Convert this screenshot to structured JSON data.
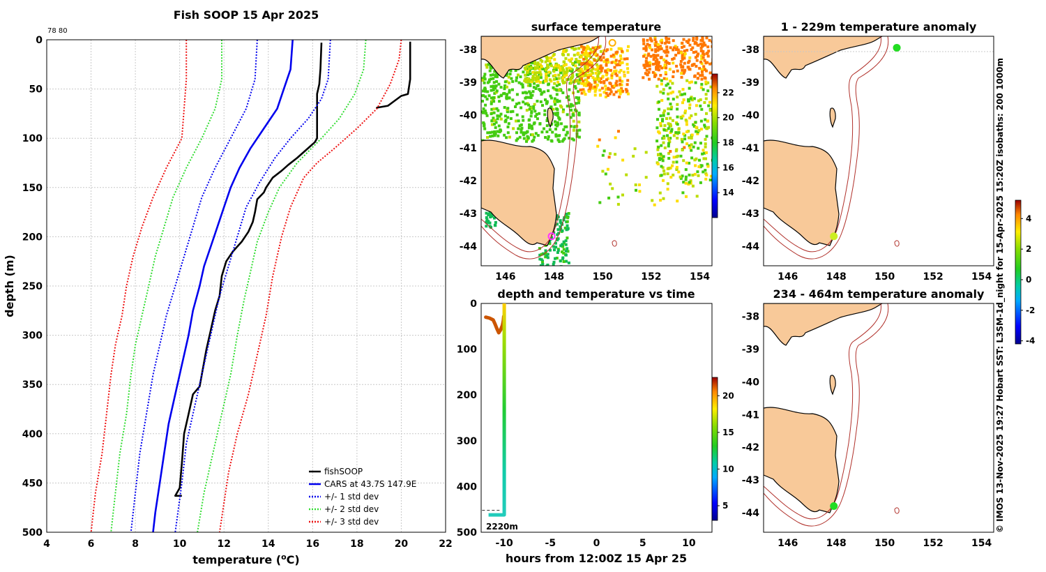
{
  "chart_data": [
    {
      "type": "line",
      "title": "Fish SOOP 15 Apr 2025",
      "corner_note": "78 80",
      "xlabel_text": "temperature (",
      "xlabel_sup": "o",
      "xlabel_unit": "C)",
      "ylabel": "depth (m)",
      "xlim": [
        4,
        22
      ],
      "ylim": [
        500,
        0
      ],
      "xticks": [
        4,
        6,
        8,
        10,
        12,
        14,
        16,
        18,
        20,
        22
      ],
      "yticks": [
        0,
        50,
        100,
        150,
        200,
        250,
        300,
        350,
        400,
        450,
        500
      ],
      "series": [
        {
          "name": "fishSOOP",
          "color": "#000000",
          "style": "solid",
          "points": [
            [
              20.4,
              2
            ],
            [
              20.4,
              20
            ],
            [
              20.4,
              40
            ],
            [
              20.3,
              55
            ],
            [
              20.0,
              57
            ],
            [
              19.7,
              62
            ],
            [
              19.4,
              67
            ],
            [
              18.9,
              69
            ],
            [
              18.9,
              70
            ],
            [
              16.4,
              3
            ],
            [
              16.35,
              30
            ],
            [
              16.3,
              45
            ],
            [
              16.2,
              55
            ],
            [
              16.2,
              80
            ],
            [
              16.2,
              100
            ],
            [
              16.1,
              104
            ],
            [
              15.7,
              112
            ],
            [
              15.3,
              120
            ],
            [
              14.9,
              127
            ],
            [
              14.6,
              133
            ],
            [
              14.2,
              140
            ],
            [
              13.9,
              150
            ],
            [
              13.8,
              155
            ],
            [
              13.5,
              162
            ],
            [
              13.4,
              175
            ],
            [
              13.3,
              185
            ],
            [
              13.1,
              195
            ],
            [
              12.8,
              205
            ],
            [
              12.4,
              215
            ],
            [
              12.1,
              225
            ],
            [
              11.9,
              240
            ],
            [
              11.8,
              260
            ],
            [
              11.6,
              275
            ],
            [
              11.4,
              295
            ],
            [
              11.2,
              315
            ],
            [
              11.0,
              340
            ],
            [
              10.9,
              352
            ],
            [
              10.6,
              360
            ],
            [
              10.4,
              380
            ],
            [
              10.2,
              400
            ],
            [
              10.1,
              430
            ],
            [
              10.0,
              455
            ],
            [
              9.8,
              463
            ],
            [
              10.1,
              463
            ]
          ]
        },
        {
          "name": "CARS at 43.7S 147.9E",
          "color": "#0000ee",
          "style": "solid",
          "points": [
            [
              15.1,
              0
            ],
            [
              15.0,
              30
            ],
            [
              14.7,
              50
            ],
            [
              14.4,
              70
            ],
            [
              13.8,
              90
            ],
            [
              13.2,
              110
            ],
            [
              12.7,
              130
            ],
            [
              12.3,
              150
            ],
            [
              12.0,
              170
            ],
            [
              11.7,
              190
            ],
            [
              11.4,
              210
            ],
            [
              11.1,
              230
            ],
            [
              10.9,
              250
            ],
            [
              10.6,
              275
            ],
            [
              10.4,
              300
            ],
            [
              10.1,
              330
            ],
            [
              9.8,
              360
            ],
            [
              9.5,
              390
            ],
            [
              9.3,
              420
            ],
            [
              9.1,
              450
            ],
            [
              8.9,
              480
            ],
            [
              8.8,
              500
            ]
          ]
        },
        {
          "name": "+/- 1 std dev",
          "color": "#0000ee",
          "style": "dot",
          "points": [
            [
              13.5,
              0
            ],
            [
              13.4,
              40
            ],
            [
              13.0,
              70
            ],
            [
              12.3,
              100
            ],
            [
              11.6,
              130
            ],
            [
              11.0,
              160
            ],
            [
              10.6,
              190
            ],
            [
              10.2,
              220
            ],
            [
              9.8,
              250
            ],
            [
              9.4,
              280
            ],
            [
              9.1,
              310
            ],
            [
              8.8,
              340
            ],
            [
              8.5,
              380
            ],
            [
              8.2,
              420
            ],
            [
              8.0,
              460
            ],
            [
              7.8,
              500
            ]
          ]
        },
        {
          "name": "",
          "color": "#0000ee",
          "style": "dot",
          "points": [
            [
              16.8,
              0
            ],
            [
              16.7,
              40
            ],
            [
              16.4,
              60
            ],
            [
              15.8,
              80
            ],
            [
              15.0,
              100
            ],
            [
              14.3,
              120
            ],
            [
              13.6,
              145
            ],
            [
              13.0,
              170
            ],
            [
              12.6,
              200
            ],
            [
              12.2,
              230
            ],
            [
              11.8,
              260
            ],
            [
              11.5,
              290
            ],
            [
              11.1,
              330
            ],
            [
              10.7,
              370
            ],
            [
              10.3,
              410
            ],
            [
              10.1,
              450
            ],
            [
              9.8,
              500
            ]
          ]
        },
        {
          "name": "+/- 2 std dev",
          "color": "#33dd33",
          "style": "dot",
          "points": [
            [
              11.9,
              0
            ],
            [
              11.9,
              40
            ],
            [
              11.6,
              70
            ],
            [
              11.0,
              100
            ],
            [
              10.3,
              130
            ],
            [
              9.7,
              160
            ],
            [
              9.3,
              190
            ],
            [
              8.9,
              220
            ],
            [
              8.6,
              250
            ],
            [
              8.3,
              280
            ],
            [
              8.0,
              310
            ],
            [
              7.8,
              340
            ],
            [
              7.6,
              380
            ],
            [
              7.3,
              420
            ],
            [
              7.1,
              460
            ],
            [
              6.9,
              500
            ]
          ]
        },
        {
          "name": "",
          "color": "#33dd33",
          "style": "dot",
          "points": [
            [
              18.4,
              0
            ],
            [
              18.3,
              30
            ],
            [
              17.9,
              55
            ],
            [
              17.2,
              80
            ],
            [
              16.4,
              100
            ],
            [
              15.3,
              125
            ],
            [
              14.5,
              150
            ],
            [
              14.0,
              175
            ],
            [
              13.5,
              205
            ],
            [
              13.2,
              235
            ],
            [
              12.9,
              265
            ],
            [
              12.6,
              300
            ],
            [
              12.3,
              340
            ],
            [
              11.9,
              380
            ],
            [
              11.5,
              420
            ],
            [
              11.1,
              460
            ],
            [
              10.8,
              500
            ]
          ]
        },
        {
          "name": "+/- 3 std dev",
          "color": "#ee1111",
          "style": "dot",
          "points": [
            [
              10.3,
              0
            ],
            [
              10.3,
              40
            ],
            [
              10.2,
              70
            ],
            [
              10.1,
              100
            ],
            [
              9.4,
              130
            ],
            [
              8.8,
              160
            ],
            [
              8.3,
              190
            ],
            [
              7.9,
              220
            ],
            [
              7.6,
              250
            ],
            [
              7.4,
              280
            ],
            [
              7.1,
              310
            ],
            [
              6.9,
              340
            ],
            [
              6.7,
              380
            ],
            [
              6.5,
              420
            ],
            [
              6.2,
              460
            ],
            [
              6.0,
              500
            ]
          ]
        },
        {
          "name": "",
          "color": "#ee1111",
          "style": "dot",
          "points": [
            [
              20.0,
              0
            ],
            [
              19.9,
              20
            ],
            [
              19.5,
              45
            ],
            [
              18.9,
              70
            ],
            [
              18.0,
              90
            ],
            [
              17.0,
              110
            ],
            [
              16.2,
              125
            ],
            [
              15.6,
              140
            ],
            [
              15.0,
              170
            ],
            [
              14.6,
              200
            ],
            [
              14.2,
              240
            ],
            [
              13.9,
              280
            ],
            [
              13.5,
              320
            ],
            [
              13.1,
              360
            ],
            [
              12.6,
              400
            ],
            [
              12.2,
              440
            ],
            [
              11.8,
              500
            ]
          ]
        }
      ],
      "legend": {
        "location": "bottom-right",
        "entries": [
          "fishSOOP",
          "CARS at 43.7S 147.9E",
          "+/- 1 std dev",
          "+/- 2 std dev",
          "+/- 3 std dev"
        ]
      }
    },
    {
      "type": "heatmap",
      "title": "surface temperature",
      "xlim": [
        145,
        154.5
      ],
      "ylim": [
        -44.6,
        -37.6
      ],
      "xticks": [
        146,
        148,
        150,
        152,
        154
      ],
      "yticks": [
        -38,
        -39,
        -40,
        -41,
        -42,
        -43,
        -44
      ],
      "colorbar": {
        "min": 12,
        "max": 23.5,
        "ticks": [
          14,
          16,
          18,
          20,
          22
        ]
      },
      "markers": [
        {
          "name": "vessel-position",
          "lon": 147.9,
          "lat": -43.7,
          "color": "#ff33ff"
        },
        {
          "name": "port-position",
          "lon": 150.4,
          "lat": -37.8,
          "color": "#ffb000"
        }
      ]
    },
    {
      "type": "scatter",
      "title": "depth and temperature vs time",
      "xlabel": "hours from 12:00Z 15 Apr 25",
      "xlim": [
        -12.5,
        12.5
      ],
      "ylim": [
        500,
        0
      ],
      "xticks": [
        -10,
        -5,
        0,
        5,
        10
      ],
      "yticks": [
        0,
        100,
        200,
        300,
        400,
        500
      ],
      "bottom_depth_label": "2220m",
      "colorbar": {
        "min": 3,
        "max": 22.5,
        "ticks": [
          5,
          10,
          15,
          20
        ]
      },
      "tracks": [
        {
          "name": "surface-track",
          "color": "#cc5500",
          "points": [
            [
              -12.0,
              30
            ],
            [
              -11.6,
              32
            ],
            [
              -11.2,
              36
            ],
            [
              -11.0,
              45
            ],
            [
              -10.8,
              55
            ],
            [
              -10.6,
              64
            ],
            [
              -10.4,
              58
            ],
            [
              -10.2,
              48
            ],
            [
              -10.1,
              38
            ],
            [
              -10.05,
              28
            ]
          ]
        },
        {
          "name": "cast-track",
          "color": "gradient",
          "points": [
            [
              -10.0,
              0
            ],
            [
              -10.0,
              40
            ],
            [
              -10.0,
              100
            ],
            [
              -10.0,
              160
            ],
            [
              -10.0,
              220
            ],
            [
              -10.0,
              300
            ],
            [
              -10.0,
              380
            ],
            [
              -10.0,
              450
            ],
            [
              -10.0,
              462
            ],
            [
              -10.8,
              462
            ],
            [
              -11.7,
              462
            ]
          ]
        }
      ]
    },
    {
      "type": "heatmap",
      "title": "1 - 229m temperature anomaly",
      "xlim": [
        145,
        154.5
      ],
      "ylim": [
        -44.6,
        -37.6
      ],
      "xticks": [
        146,
        148,
        150,
        152,
        154
      ],
      "yticks": [
        -38,
        -39,
        -40,
        -41,
        -42,
        -43,
        -44
      ],
      "markers": [
        {
          "name": "start-position",
          "lon": 150.5,
          "lat": -37.95,
          "color": "#22dd22"
        },
        {
          "name": "end-position",
          "lon": 147.9,
          "lat": -43.7,
          "color": "#ccee22"
        }
      ]
    },
    {
      "type": "heatmap",
      "title": "234 - 464m temperature anomaly",
      "xlim": [
        145,
        154.5
      ],
      "ylim": [
        -44.6,
        -37.6
      ],
      "xticks": [
        146,
        148,
        150,
        152,
        154
      ],
      "yticks": [
        -38,
        -39,
        -40,
        -41,
        -42,
        -43,
        -44
      ],
      "colorbar": {
        "min": -4.2,
        "max": 5.2,
        "ticks": [
          4,
          2,
          0,
          -2,
          -4
        ]
      },
      "markers": [
        {
          "name": "end-position",
          "lon": 147.9,
          "lat": -43.8,
          "color": "#22dd22"
        }
      ]
    }
  ],
  "side_note": "© IMOS 13-Nov-2025 19:27 Hobart SST: L3SM-1d_night for 15-Apr-2025 15:20Z isobaths: 200  1000m"
}
